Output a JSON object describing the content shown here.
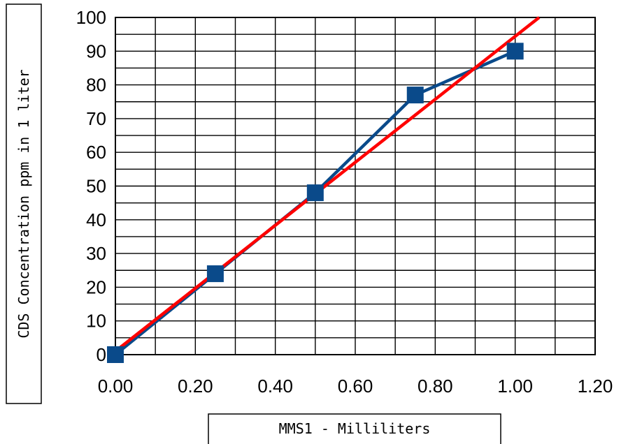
{
  "chart_data": {
    "type": "scatter",
    "xlabel": "MMS1 - Milliliters",
    "ylabel": "CDS Concentration ppm in 1 liter",
    "xlim": [
      0,
      1.2
    ],
    "ylim": [
      0,
      100
    ],
    "x_ticks": [
      "0.00",
      "0.20",
      "0.40",
      "0.60",
      "0.80",
      "1.00",
      "1.20"
    ],
    "y_ticks": [
      "0",
      "10",
      "20",
      "30",
      "40",
      "50",
      "60",
      "70",
      "80",
      "90",
      "100"
    ],
    "x_minor_step": 0.1,
    "y_minor_step": 5,
    "grid": true,
    "series": [
      {
        "kind": "line-with-markers",
        "marker": "square",
        "color": "#0a4a8a",
        "x": [
          0.0,
          0.25,
          0.5,
          0.75,
          1.0
        ],
        "y": [
          0,
          24,
          48,
          77,
          90
        ]
      },
      {
        "kind": "trendline",
        "color": "#ff0000",
        "x": [
          0.0,
          1.06
        ],
        "y": [
          1,
          100
        ]
      }
    ]
  }
}
